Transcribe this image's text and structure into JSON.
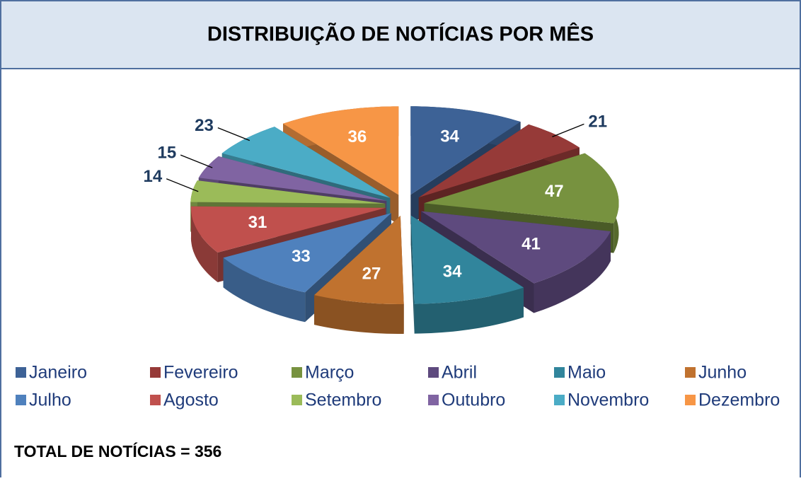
{
  "chart_data": {
    "type": "pie3d",
    "title": "DISTRIBUIÇÃO DE NOTÍCIAS POR MÊS",
    "categories": [
      "Janeiro",
      "Fevereiro",
      "Março",
      "Abril",
      "Maio",
      "Junho",
      "Julho",
      "Agosto",
      "Setembro",
      "Outubro",
      "Novembro",
      "Dezembro"
    ],
    "values": [
      34,
      21,
      47,
      41,
      34,
      27,
      33,
      31,
      14,
      15,
      23,
      36
    ],
    "colors": [
      "#3d6296",
      "#963a38",
      "#77923f",
      "#5e4a7e",
      "#31859c",
      "#c0722f",
      "#4f81bd",
      "#c0504d",
      "#9bbb59",
      "#8064a2",
      "#4bacc6",
      "#f79646"
    ],
    "legend": "bottom"
  },
  "footer": "TOTAL DE NOTÍCIAS = 356"
}
